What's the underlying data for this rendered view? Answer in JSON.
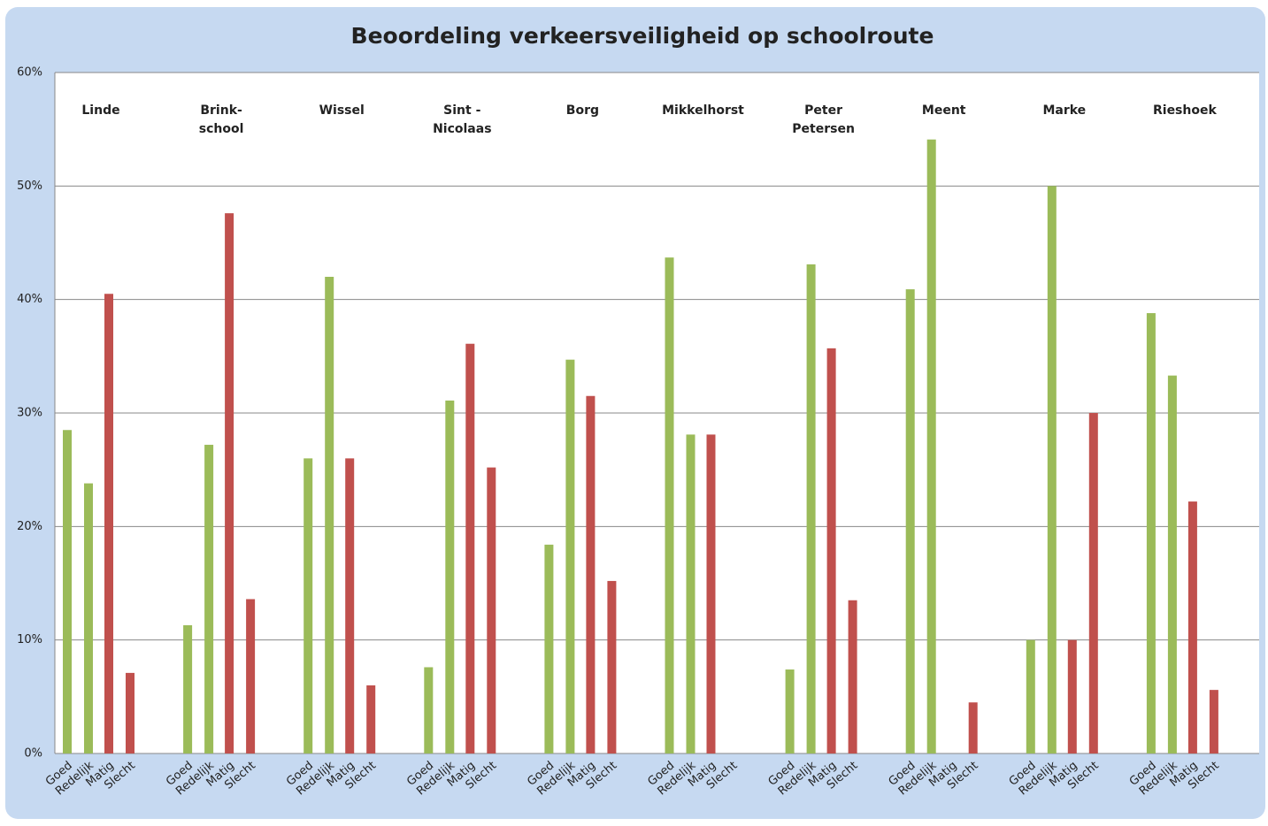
{
  "chart_data": {
    "type": "grouped-bar",
    "title": "Beoordeling verkeersveiligheid op schoolroute",
    "categories": [
      "Goed",
      "Redelijk",
      "Matig",
      "Slecht"
    ],
    "colors": [
      "#9bbb59",
      "#9bbb59",
      "#c0504d",
      "#c0504d"
    ],
    "groups": [
      {
        "name": [
          "Linde"
        ],
        "values": [
          28.5,
          23.8,
          40.5,
          7.1
        ]
      },
      {
        "name": [
          "Brink-",
          "school"
        ],
        "values": [
          11.3,
          27.2,
          47.6,
          13.6
        ]
      },
      {
        "name": [
          "Wissel"
        ],
        "values": [
          26,
          42,
          26,
          6
        ]
      },
      {
        "name": [
          "Sint -",
          "Nicolaas"
        ],
        "values": [
          7.6,
          31.1,
          36.1,
          25.2
        ]
      },
      {
        "name": [
          "Borg"
        ],
        "values": [
          18.4,
          34.7,
          31.5,
          15.2
        ]
      },
      {
        "name": [
          "Mikkelhorst"
        ],
        "values": [
          43.7,
          28.1,
          28.1,
          0
        ]
      },
      {
        "name": [
          "Peter",
          "Petersen"
        ],
        "values": [
          7.4,
          43.1,
          35.7,
          13.5
        ]
      },
      {
        "name": [
          "Meent"
        ],
        "values": [
          40.9,
          54.1,
          0,
          4.5
        ]
      },
      {
        "name": [
          "Marke"
        ],
        "values": [
          10,
          50,
          10,
          30
        ]
      },
      {
        "name": [
          "Rieshoek"
        ],
        "values": [
          38.8,
          33.3,
          22.2,
          5.6
        ]
      }
    ],
    "ylim": [
      0,
      60
    ],
    "yticks": [
      {
        "value": 0,
        "label": "0%"
      },
      {
        "value": 10,
        "label": "10%"
      },
      {
        "value": 20,
        "label": "20%"
      },
      {
        "value": 30,
        "label": "30%"
      },
      {
        "value": 40,
        "label": "40%"
      },
      {
        "value": 50,
        "label": "50%"
      },
      {
        "value": 60,
        "label": "60%"
      }
    ],
    "grid": true
  }
}
